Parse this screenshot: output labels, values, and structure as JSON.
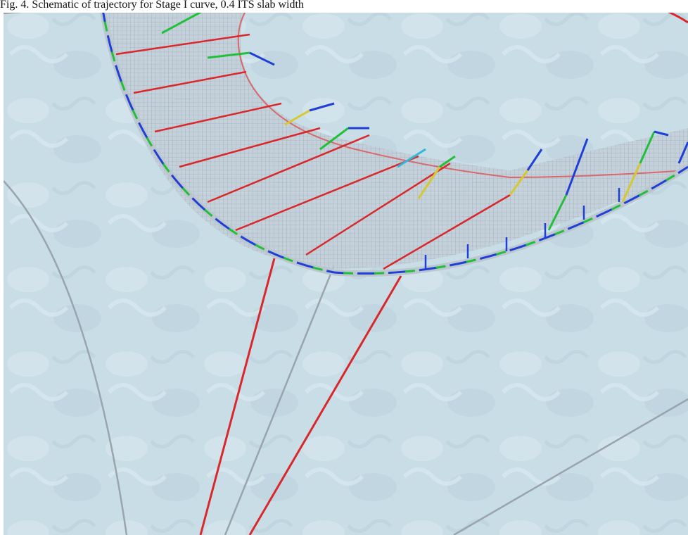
{
  "caption": {
    "text": "Fig. 4. Schematic of trajectory for Stage I curve, 0.4 ITS slab width"
  },
  "scene": {
    "description_label": "3D ice-scene render with curved track and cross-section markers"
  },
  "colors": {
    "ice_background": "#c9dde6",
    "track_mesh": "#bfc9d2",
    "trajectory_red": "#d8282c",
    "boundary_gray": "#9aa4ad",
    "marker_blue": "#1f3fd6",
    "marker_green": "#22c03a",
    "marker_yellow": "#d6c830",
    "marker_cyan": "#33b6d8"
  }
}
